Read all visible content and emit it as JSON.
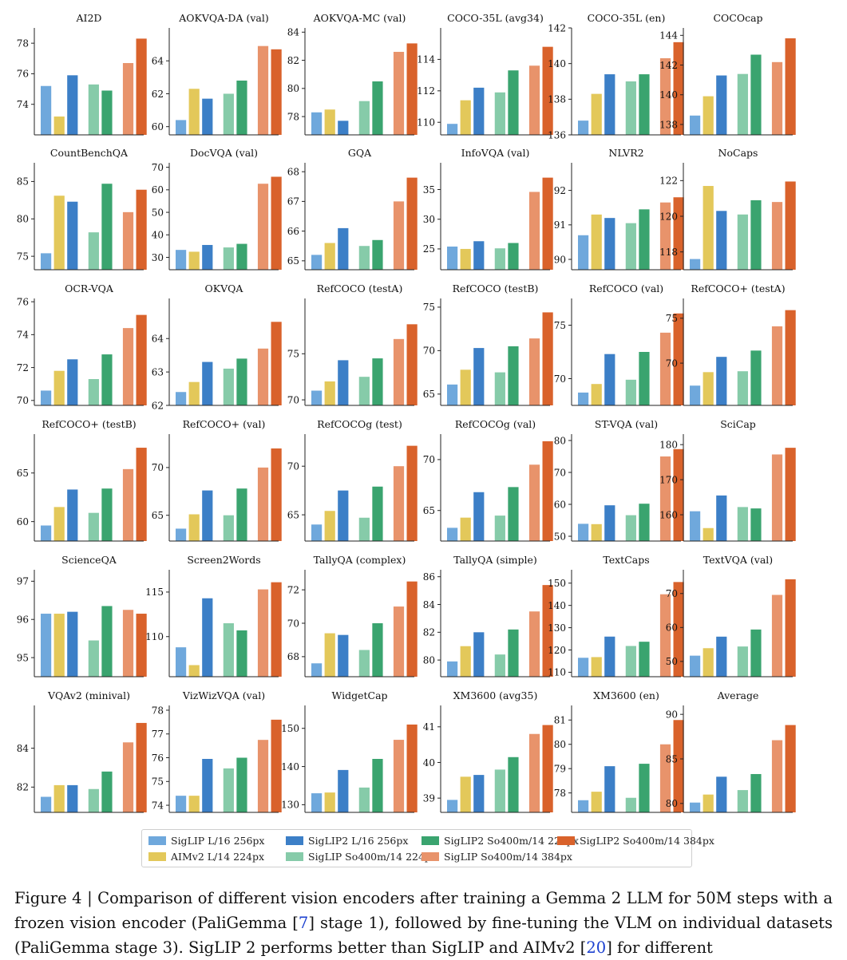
{
  "colors": {
    "siglip_l16_256": "#6fa8dc",
    "siglip2_l16_256": "#3c7fc7",
    "aimv2_l14_224": "#e3c85a",
    "siglip_so400m_224": "#86cba9",
    "siglip2_so400m_224": "#3aa46f",
    "siglip_so400m_384": "#e8936b",
    "siglip2_so400m_384": "#d9622b"
  },
  "legend": {
    "siglip_l16_256": "SigLIP L/16 256px",
    "aimv2_l14_224": "AIMv2 L/14 224px",
    "siglip2_l16_256": "SigLIP2 L/16 256px",
    "siglip_so400m_224": "SigLIP So400m/14 224px",
    "siglip2_so400m_224": "SigLIP2 So400m/14 224px",
    "siglip_so400m_384": "SigLIP So400m/14 384px",
    "siglip2_so400m_384": "SigLIP2 So400m/14 384px"
  },
  "caption": {
    "p1": "Figure 4 | Comparison of different vision encoders after training a Gemma 2 LLM for 50M steps with a frozen vision encoder (PaliGemma [",
    "ref1": "7",
    "p2": "] stage 1), followed by fine-tuning the VLM on individual datasets (PaliGemma stage 3). SigLIP 2 performs better than SigLIP and AIMv2 [",
    "ref2": "20",
    "p3": "] for different"
  },
  "chart_data": [
    {
      "type": "bar",
      "title": "AI2D",
      "ylim": [
        72,
        79
      ],
      "ticks": [
        74,
        76,
        78
      ],
      "values": [
        75.2,
        73.2,
        75.9,
        75.3,
        74.9,
        76.7,
        78.3
      ]
    },
    {
      "type": "bar",
      "title": "AOKVQA-DA (val)",
      "ylim": [
        59.5,
        66
      ],
      "ticks": [
        60,
        62,
        64
      ],
      "values": [
        60.4,
        62.3,
        61.7,
        62.0,
        62.8,
        64.9,
        64.7
      ]
    },
    {
      "type": "bar",
      "title": "AOKVQA-MC (val)",
      "ylim": [
        76.7,
        84.3
      ],
      "ticks": [
        78,
        80,
        82,
        84
      ],
      "values": [
        78.3,
        78.5,
        77.7,
        79.1,
        80.5,
        82.6,
        83.2
      ]
    },
    {
      "type": "bar",
      "title": "COCO-35L (avg34)",
      "ylim": [
        109.2,
        116
      ],
      "ticks": [
        110,
        112,
        114
      ],
      "values": [
        109.9,
        111.4,
        112.2,
        111.9,
        113.3,
        113.6,
        114.8
      ]
    },
    {
      "type": "bar",
      "title": "COCO-35L (en)",
      "ylim": [
        136,
        142
      ],
      "ticks": [
        136,
        138,
        140,
        142
      ],
      "values": [
        136.8,
        138.3,
        139.4,
        139.0,
        139.4,
        140.3,
        141.2
      ]
    },
    {
      "type": "bar",
      "title": "COCOcap",
      "ylim": [
        137.3,
        144.5
      ],
      "ticks": [
        138,
        140,
        142,
        144
      ],
      "values": [
        138.6,
        139.9,
        141.3,
        141.4,
        142.7,
        142.2,
        143.8
      ]
    },
    {
      "type": "bar",
      "title": "CountBenchQA",
      "ylim": [
        73.2,
        87.5
      ],
      "ticks": [
        75,
        80,
        85
      ],
      "values": [
        75.4,
        83.1,
        82.3,
        78.2,
        84.7,
        80.9,
        83.9
      ]
    },
    {
      "type": "bar",
      "title": "DocVQA (val)",
      "ylim": [
        24.5,
        72
      ],
      "ticks": [
        30,
        40,
        50,
        60,
        70
      ],
      "values": [
        33.3,
        32.5,
        35.5,
        34.4,
        36.0,
        62.7,
        65.8
      ]
    },
    {
      "type": "bar",
      "title": "GQA",
      "ylim": [
        64.7,
        68.3
      ],
      "ticks": [
        65,
        66,
        67,
        68
      ],
      "values": [
        65.2,
        65.6,
        66.1,
        65.5,
        65.7,
        67.0,
        67.8
      ]
    },
    {
      "type": "bar",
      "title": "InfoVQA (val)",
      "ylim": [
        21.5,
        39.5
      ],
      "ticks": [
        25,
        30,
        35
      ],
      "values": [
        25.4,
        25.0,
        26.3,
        25.1,
        26.0,
        34.6,
        37.0
      ]
    },
    {
      "type": "bar",
      "title": "NLVR2",
      "ylim": [
        89.7,
        92.8
      ],
      "ticks": [
        90,
        91,
        92
      ],
      "values": [
        90.7,
        91.3,
        91.2,
        91.05,
        91.45,
        91.65,
        91.8
      ]
    },
    {
      "type": "bar",
      "title": "NoCaps",
      "ylim": [
        117,
        123
      ],
      "ticks": [
        118,
        120,
        122
      ],
      "values": [
        117.6,
        121.7,
        120.3,
        120.1,
        120.9,
        120.8,
        121.95
      ]
    },
    {
      "type": "bar",
      "title": "OCR-VQA",
      "ylim": [
        69.7,
        76.2
      ],
      "ticks": [
        70,
        72,
        74,
        76
      ],
      "values": [
        70.6,
        71.8,
        72.5,
        71.3,
        72.8,
        74.4,
        75.2
      ]
    },
    {
      "type": "bar",
      "title": "OKVQA",
      "ylim": [
        62,
        65.2
      ],
      "ticks": [
        62,
        63,
        64
      ],
      "values": [
        62.4,
        62.7,
        63.3,
        63.1,
        63.4,
        63.7,
        64.5
      ]
    },
    {
      "type": "bar",
      "title": "RefCOCO (testA)",
      "ylim": [
        69.4,
        81
      ],
      "ticks": [
        70,
        75
      ],
      "values": [
        71.0,
        72.0,
        74.3,
        72.5,
        74.5,
        76.6,
        78.2
      ]
    },
    {
      "type": "bar",
      "title": "RefCOCO (testB)",
      "ylim": [
        63.7,
        76
      ],
      "ticks": [
        65,
        70,
        75
      ],
      "values": [
        66.1,
        67.8,
        70.3,
        67.5,
        70.5,
        71.4,
        74.4
      ]
    },
    {
      "type": "bar",
      "title": "RefCOCO (val)",
      "ylim": [
        67.5,
        77.5
      ],
      "ticks": [
        70,
        75
      ],
      "values": [
        68.7,
        69.5,
        72.3,
        69.9,
        72.5,
        74.3,
        76.1
      ]
    },
    {
      "type": "bar",
      "title": "RefCOCO+ (testA)",
      "ylim": [
        65.3,
        77.2
      ],
      "ticks": [
        70,
        75
      ],
      "values": [
        67.5,
        69.0,
        70.7,
        69.1,
        71.4,
        74.1,
        75.9
      ]
    },
    {
      "type": "bar",
      "title": "RefCOCO+ (testB)",
      "ylim": [
        58,
        69
      ],
      "ticks": [
        60,
        65
      ],
      "values": [
        59.6,
        61.5,
        63.3,
        60.9,
        63.4,
        65.4,
        67.6
      ]
    },
    {
      "type": "bar",
      "title": "RefCOCO+ (val)",
      "ylim": [
        62.3,
        73.5
      ],
      "ticks": [
        65,
        70
      ],
      "values": [
        63.6,
        65.1,
        67.6,
        65.0,
        67.8,
        70.0,
        72.0
      ]
    },
    {
      "type": "bar",
      "title": "RefCOCOg (test)",
      "ylim": [
        62.3,
        73.3
      ],
      "ticks": [
        65,
        70
      ],
      "values": [
        64.0,
        65.4,
        67.5,
        64.7,
        67.9,
        70.0,
        72.1
      ]
    },
    {
      "type": "bar",
      "title": "RefCOCOg (val)",
      "ylim": [
        62,
        72.5
      ],
      "ticks": [
        65,
        70
      ],
      "values": [
        63.3,
        64.3,
        66.8,
        64.5,
        67.3,
        69.5,
        71.8
      ]
    },
    {
      "type": "bar",
      "title": "ST-VQA (val)",
      "ylim": [
        48.5,
        82
      ],
      "ticks": [
        50,
        60,
        70,
        80
      ],
      "values": [
        53.9,
        53.8,
        59.7,
        56.6,
        60.2,
        75.0,
        77.3
      ]
    },
    {
      "type": "bar",
      "title": "SciCap",
      "ylim": [
        152.5,
        183
      ],
      "ticks": [
        160,
        170,
        180
      ],
      "values": [
        161.0,
        156.2,
        165.5,
        162.2,
        161.8,
        177.2,
        179.1
      ]
    },
    {
      "type": "bar",
      "title": "ScienceQA",
      "ylim": [
        94.5,
        97.3
      ],
      "ticks": [
        95,
        96,
        97
      ],
      "values": [
        96.15,
        96.15,
        96.2,
        95.45,
        96.35,
        96.25,
        96.15
      ]
    },
    {
      "type": "bar",
      "title": "Screen2Words",
      "ylim": [
        105.5,
        117.5
      ],
      "ticks": [
        110,
        115
      ],
      "values": [
        108.8,
        106.8,
        114.3,
        111.5,
        110.7,
        115.3,
        116.1
      ]
    },
    {
      "type": "bar",
      "title": "TallyQA (complex)",
      "ylim": [
        66.8,
        73.2
      ],
      "ticks": [
        68,
        70,
        72
      ],
      "values": [
        67.6,
        69.4,
        69.3,
        68.4,
        70.0,
        71.0,
        72.5
      ]
    },
    {
      "type": "bar",
      "title": "TallyQA (simple)",
      "ylim": [
        78.8,
        86.5
      ],
      "ticks": [
        80,
        82,
        84,
        86
      ],
      "values": [
        79.9,
        81.0,
        82.0,
        80.4,
        82.2,
        83.5,
        85.4
      ]
    },
    {
      "type": "bar",
      "title": "TextCaps",
      "ylim": [
        108,
        156
      ],
      "ticks": [
        110,
        120,
        130,
        140,
        150
      ],
      "values": [
        116.5,
        116.8,
        126.0,
        121.8,
        123.7,
        145.0,
        150.5
      ]
    },
    {
      "type": "bar",
      "title": "TextVQA (val)",
      "ylim": [
        45.5,
        77
      ],
      "ticks": [
        50,
        60,
        70
      ],
      "values": [
        51.7,
        53.9,
        57.3,
        54.4,
        59.4,
        69.6,
        74.2
      ]
    },
    {
      "type": "bar",
      "title": "VQAv2 (minival)",
      "ylim": [
        80.7,
        86.2
      ],
      "ticks": [
        82,
        84
      ],
      "values": [
        81.5,
        82.1,
        82.1,
        81.9,
        82.8,
        84.3,
        85.3
      ]
    },
    {
      "type": "bar",
      "title": "VizWizVQA (val)",
      "ylim": [
        73.7,
        78.2
      ],
      "ticks": [
        74,
        75,
        76,
        77,
        78
      ],
      "values": [
        74.4,
        74.4,
        75.95,
        75.55,
        76.0,
        76.75,
        77.6
      ]
    },
    {
      "type": "bar",
      "title": "WidgetCap",
      "ylim": [
        128,
        156
      ],
      "ticks": [
        130,
        140,
        150
      ],
      "values": [
        133.0,
        133.2,
        139.1,
        134.5,
        142.0,
        147.0,
        151.0
      ]
    },
    {
      "type": "bar",
      "title": "XM3600 (avg35)",
      "ylim": [
        38.6,
        41.6
      ],
      "ticks": [
        39,
        40,
        41
      ],
      "values": [
        38.95,
        39.6,
        39.65,
        39.8,
        40.15,
        40.8,
        41.05
      ]
    },
    {
      "type": "bar",
      "title": "XM3600 (en)",
      "ylim": [
        77.2,
        81.6
      ],
      "ticks": [
        78,
        79,
        80,
        81
      ],
      "values": [
        77.7,
        78.05,
        79.1,
        77.8,
        79.2,
        80.0,
        81.0
      ]
    },
    {
      "type": "bar",
      "title": "Average",
      "ylim": [
        79,
        91
      ],
      "ticks": [
        80,
        85,
        90
      ],
      "values": [
        80.1,
        81.0,
        83.0,
        81.5,
        83.3,
        87.1,
        88.8
      ]
    }
  ]
}
